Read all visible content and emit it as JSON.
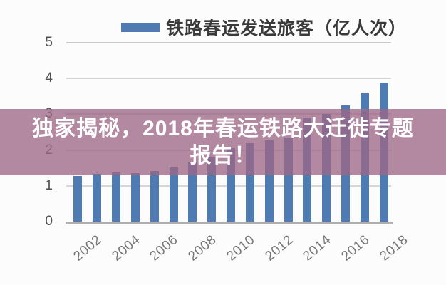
{
  "banner": {
    "line1": "独家揭秘，2018年春运铁路大迁徙专题",
    "line2": "报告！",
    "full_text": "独家揭秘，2018年春运铁路大迁徙专题报告！",
    "bg_color": "#9E6786",
    "text_color": "#ffffff"
  },
  "legend": {
    "label": "铁路春运发送旅客（亿人次）",
    "swatch_color": "#4e7cb2"
  },
  "chart_data": {
    "type": "bar",
    "title": "铁路春运发送旅客（亿人次）",
    "categories": [
      "2002",
      "2003",
      "2004",
      "2005",
      "2006",
      "2007",
      "2008",
      "2009",
      "2010",
      "2011",
      "2012",
      "2013",
      "2014",
      "2015",
      "2016",
      "2017",
      "2018"
    ],
    "values": [
      1.27,
      1.33,
      1.37,
      1.36,
      1.42,
      1.51,
      1.65,
      1.8,
      2.05,
      2.2,
      2.28,
      2.35,
      2.9,
      3.0,
      3.25,
      3.58,
      3.88
    ],
    "xlabel": "",
    "ylabel": "",
    "ylim": [
      0,
      5
    ],
    "yticks": [
      "0",
      "1",
      "2",
      "3",
      "4",
      "5"
    ],
    "x_tick_labels": [
      "2002",
      "2004",
      "2006",
      "2008",
      "2010",
      "2012",
      "2014",
      "2016",
      "2018"
    ],
    "grid": true,
    "legend_position": "top",
    "bar_color": "#4e7cb2",
    "gridline_color": "#d6d6d6"
  }
}
